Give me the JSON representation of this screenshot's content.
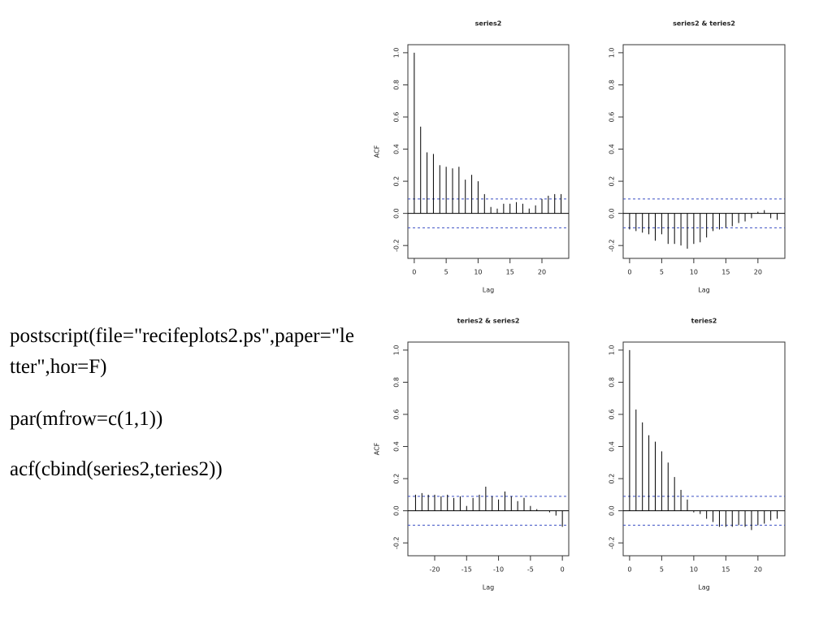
{
  "slide_text": [
    "postscript(file=\"recifeplots2.ps\",paper=\"letter\",hor=F)",
    "par(mfrow=c(1,1))",
    "acf(cbind(series2,teries2))"
  ],
  "chart_data": [
    {
      "type": "acf",
      "title": "series2",
      "xlabel": "Lag",
      "ylabel": "ACF",
      "x": [
        0,
        1,
        2,
        3,
        4,
        5,
        6,
        7,
        8,
        9,
        10,
        11,
        12,
        13,
        14,
        15,
        16,
        17,
        18,
        19,
        20,
        21,
        22,
        23
      ],
      "values": [
        1.0,
        0.54,
        0.38,
        0.37,
        0.3,
        0.29,
        0.28,
        0.29,
        0.21,
        0.24,
        0.2,
        0.12,
        0.04,
        0.03,
        0.06,
        0.06,
        0.07,
        0.06,
        0.03,
        0.05,
        0.09,
        0.11,
        0.12,
        0.12
      ],
      "conf_limits": [
        0.09,
        -0.09
      ],
      "conf_color": "#3b4fc4",
      "xlim": [
        -1,
        24.2
      ],
      "ylim": [
        -0.28,
        1.05
      ],
      "xticks": [
        0,
        5,
        10,
        15,
        20
      ],
      "yticks": [
        {
          "value": -0.2,
          "label": "-0.2"
        },
        {
          "value": 0,
          "label": "0.0"
        },
        {
          "value": 0.2,
          "label": "0.2"
        },
        {
          "value": 0.4,
          "label": "0.4"
        },
        {
          "value": 0.6,
          "label": "0.6"
        },
        {
          "value": 0.8,
          "label": "0.8"
        },
        {
          "value": 1,
          "label": "1.0"
        }
      ]
    },
    {
      "type": "acf",
      "title": "series2 & teries2",
      "xlabel": "Lag",
      "x": [
        0,
        1,
        2,
        3,
        4,
        5,
        6,
        7,
        8,
        9,
        10,
        11,
        12,
        13,
        14,
        15,
        16,
        17,
        18,
        19,
        20,
        21,
        22,
        23
      ],
      "values": [
        -0.1,
        -0.11,
        -0.12,
        -0.13,
        -0.17,
        -0.13,
        -0.19,
        -0.19,
        -0.2,
        -0.22,
        -0.19,
        -0.18,
        -0.15,
        -0.11,
        -0.1,
        -0.09,
        -0.08,
        -0.06,
        -0.05,
        -0.03,
        0.01,
        0.02,
        -0.03,
        -0.04
      ],
      "conf_limits": [
        0.09,
        -0.09
      ],
      "conf_color": "#3b4fc4",
      "xlim": [
        -1,
        24.2
      ],
      "ylim": [
        -0.28,
        1.05
      ],
      "xticks": [
        0,
        5,
        10,
        15,
        20
      ],
      "yticks": [
        {
          "value": -0.2,
          "label": "-0.2"
        },
        {
          "value": 0,
          "label": "0.0"
        },
        {
          "value": 0.2,
          "label": "0.2"
        },
        {
          "value": 0.4,
          "label": "0.4"
        },
        {
          "value": 0.6,
          "label": "0.6"
        },
        {
          "value": 0.8,
          "label": "0.8"
        },
        {
          "value": 1,
          "label": "1.0"
        }
      ]
    },
    {
      "type": "acf",
      "title": "teries2 & series2",
      "xlabel": "Lag",
      "ylabel": "ACF",
      "x": [
        -23,
        -22,
        -21,
        -20,
        -19,
        -18,
        -17,
        -16,
        -15,
        -14,
        -13,
        -12,
        -11,
        -10,
        -9,
        -8,
        -7,
        -6,
        -5,
        -4,
        -3,
        -2,
        -1,
        0
      ],
      "values": [
        0.1,
        0.11,
        0.1,
        0.1,
        0.09,
        0.1,
        0.08,
        0.09,
        0.03,
        0.08,
        0.1,
        0.15,
        0.09,
        0.07,
        0.12,
        0.09,
        0.06,
        0.08,
        0.03,
        0.01,
        0.0,
        -0.01,
        -0.03,
        -0.1
      ],
      "conf_limits": [
        0.09,
        -0.09
      ],
      "conf_color": "#3b4fc4",
      "xlim": [
        -24.2,
        1
      ],
      "ylim": [
        -0.28,
        1.05
      ],
      "xticks": [
        -20,
        -15,
        -10,
        -5,
        0
      ],
      "yticks": [
        {
          "value": -0.2,
          "label": "-0.2"
        },
        {
          "value": 0,
          "label": "0.0"
        },
        {
          "value": 0.2,
          "label": "0.2"
        },
        {
          "value": 0.4,
          "label": "0.4"
        },
        {
          "value": 0.6,
          "label": "0.6"
        },
        {
          "value": 0.8,
          "label": "0.8"
        },
        {
          "value": 1,
          "label": "1.0"
        }
      ]
    },
    {
      "type": "acf",
      "title": "teries2",
      "xlabel": "Lag",
      "x": [
        0,
        1,
        2,
        3,
        4,
        5,
        6,
        7,
        8,
        9,
        10,
        11,
        12,
        13,
        14,
        15,
        16,
        17,
        18,
        19,
        20,
        21,
        22,
        23
      ],
      "values": [
        1.0,
        0.63,
        0.55,
        0.47,
        0.43,
        0.37,
        0.3,
        0.21,
        0.13,
        0.07,
        -0.01,
        -0.02,
        -0.05,
        -0.07,
        -0.1,
        -0.1,
        -0.1,
        -0.09,
        -0.1,
        -0.12,
        -0.09,
        -0.08,
        -0.06,
        -0.05
      ],
      "conf_limits": [
        0.09,
        -0.09
      ],
      "conf_color": "#3b4fc4",
      "xlim": [
        -1,
        24.2
      ],
      "ylim": [
        -0.28,
        1.05
      ],
      "xticks": [
        0,
        5,
        10,
        15,
        20
      ],
      "yticks": [
        {
          "value": -0.2,
          "label": "-0.2"
        },
        {
          "value": 0,
          "label": "0.0"
        },
        {
          "value": 0.2,
          "label": "0.2"
        },
        {
          "value": 0.4,
          "label": "0.4"
        },
        {
          "value": 0.6,
          "label": "0.6"
        },
        {
          "value": 0.8,
          "label": "0.8"
        },
        {
          "value": 1,
          "label": "1.0"
        }
      ]
    }
  ]
}
